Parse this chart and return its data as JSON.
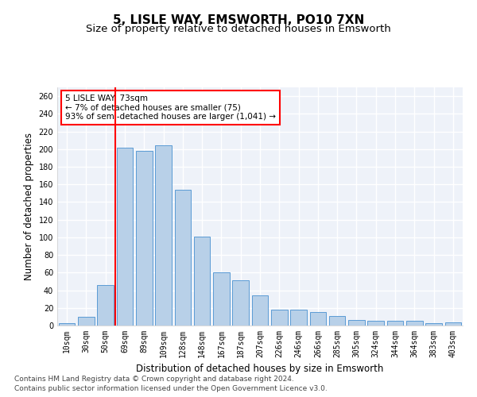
{
  "title": "5, LISLE WAY, EMSWORTH, PO10 7XN",
  "subtitle": "Size of property relative to detached houses in Emsworth",
  "xlabel": "Distribution of detached houses by size in Emsworth",
  "ylabel": "Number of detached properties",
  "categories": [
    "10sqm",
    "30sqm",
    "50sqm",
    "69sqm",
    "89sqm",
    "109sqm",
    "128sqm",
    "148sqm",
    "167sqm",
    "187sqm",
    "207sqm",
    "226sqm",
    "246sqm",
    "266sqm",
    "285sqm",
    "305sqm",
    "324sqm",
    "344sqm",
    "364sqm",
    "383sqm",
    "403sqm"
  ],
  "values": [
    3,
    10,
    46,
    202,
    198,
    204,
    154,
    101,
    60,
    51,
    34,
    18,
    18,
    15,
    11,
    6,
    5,
    5,
    5,
    3,
    4
  ],
  "bar_color": "#b8d0e8",
  "bar_edge_color": "#5b9bd5",
  "vline_x_index": 3,
  "vline_color": "red",
  "annotation_text": "5 LISLE WAY: 73sqm\n← 7% of detached houses are smaller (75)\n93% of semi-detached houses are larger (1,041) →",
  "annotation_box_color": "white",
  "annotation_box_edge_color": "red",
  "ylim": [
    0,
    270
  ],
  "yticks": [
    0,
    20,
    40,
    60,
    80,
    100,
    120,
    140,
    160,
    180,
    200,
    220,
    240,
    260
  ],
  "footnote1": "Contains HM Land Registry data © Crown copyright and database right 2024.",
  "footnote2": "Contains public sector information licensed under the Open Government Licence v3.0.",
  "bg_color": "#eef2f9",
  "grid_color": "white",
  "title_fontsize": 11,
  "subtitle_fontsize": 9.5,
  "ylabel_fontsize": 8.5,
  "xlabel_fontsize": 8.5,
  "tick_fontsize": 7,
  "footnote_fontsize": 6.5
}
